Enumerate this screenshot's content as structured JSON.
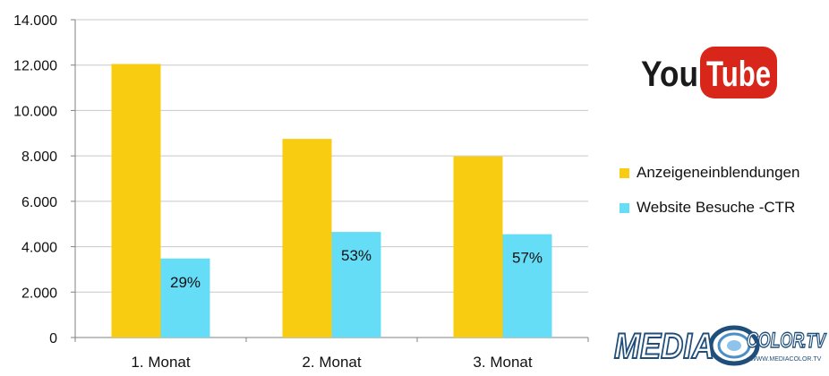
{
  "chart_data": {
    "type": "bar",
    "categories": [
      "1. Monat",
      "2. Monat",
      "3. Monat"
    ],
    "series": [
      {
        "name": "Anzeigeneinblendungen",
        "color": "#F8CC10",
        "values": [
          12050,
          8750,
          7980
        ],
        "labels": [
          "",
          "",
          ""
        ]
      },
      {
        "name": "Website Besuche -CTR",
        "color": "#66DDF7",
        "values": [
          3480,
          4650,
          4550
        ],
        "labels": [
          "29%",
          "53%",
          "57%"
        ]
      }
    ],
    "ylim": [
      0,
      14000
    ],
    "yticks": [
      "0",
      "2.000",
      "4.000",
      "6.000",
      "8.000",
      "10.000",
      "12.000",
      "14.000"
    ],
    "grid": true,
    "legend_position": "right"
  },
  "logos": {
    "youtube": {
      "you": "You",
      "tube": "Tube"
    },
    "mediacolor": {
      "media": "MEDIA",
      "color": "COLOR",
      "tv": ".TV",
      "url": "WWW.MEDIACOLOR.TV"
    }
  }
}
